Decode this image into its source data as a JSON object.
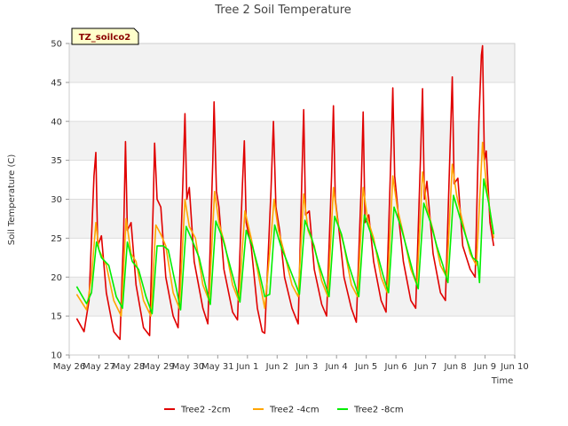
{
  "chart_data": {
    "type": "line",
    "title": "Tree 2 Soil Temperature",
    "xlabel": "Time",
    "ylabel": "Soil Temperature (C)",
    "ylim": [
      10,
      50
    ],
    "xlim": [
      "2024-05-26",
      "2024-06-10"
    ],
    "yticks": [
      "10",
      "15",
      "20",
      "25",
      "30",
      "35",
      "40",
      "45",
      "50"
    ],
    "xtick_labels": [
      "May 26",
      "May 27",
      "May 28",
      "May 29",
      "May 30",
      "May 31",
      "Jun 1",
      "Jun 2",
      "Jun 3",
      "Jun 4",
      "Jun 5",
      "Jun 6",
      "Jun 7",
      "Jun 8",
      "Jun 9",
      "Jun 10"
    ],
    "grid": true,
    "legend_position": "bottom",
    "annotation": "TZ_soilco2",
    "series": [
      {
        "name": "Tree2 -2cm",
        "color": "#e00000",
        "points": [
          [
            "2024-05-26 06:00",
            14.7
          ],
          [
            "2024-05-26 12:00",
            13.0
          ],
          [
            "2024-05-26 16:00",
            17.0
          ],
          [
            "2024-05-26 20:00",
            33.0
          ],
          [
            "2024-05-26 21:30",
            36.0
          ],
          [
            "2024-05-26 23:00",
            24.0
          ],
          [
            "2024-05-27 02:00",
            25.3
          ],
          [
            "2024-05-27 06:00",
            18.0
          ],
          [
            "2024-05-27 12:00",
            13.0
          ],
          [
            "2024-05-27 17:00",
            12.0
          ],
          [
            "2024-05-27 20:00",
            26.0
          ],
          [
            "2024-05-27 21:30",
            37.4
          ],
          [
            "2024-05-27 23:00",
            26.0
          ],
          [
            "2024-05-28 02:00",
            27.0
          ],
          [
            "2024-05-28 06:00",
            19.0
          ],
          [
            "2024-05-28 12:00",
            13.5
          ],
          [
            "2024-05-28 17:00",
            12.5
          ],
          [
            "2024-05-28 20:00",
            30.0
          ],
          [
            "2024-05-28 21:00",
            37.2
          ],
          [
            "2024-05-28 23:00",
            30.0
          ],
          [
            "2024-05-29 02:00",
            29.0
          ],
          [
            "2024-05-29 06:00",
            20.0
          ],
          [
            "2024-05-29 12:00",
            15.0
          ],
          [
            "2024-05-29 16:00",
            13.5
          ],
          [
            "2024-05-29 20:00",
            33.0
          ],
          [
            "2024-05-29 21:30",
            41.0
          ],
          [
            "2024-05-29 23:00",
            30.0
          ],
          [
            "2024-05-30 01:00",
            31.5
          ],
          [
            "2024-05-30 05:00",
            22.0
          ],
          [
            "2024-05-30 12:00",
            16.0
          ],
          [
            "2024-05-30 16:00",
            14.0
          ],
          [
            "2024-05-30 20:00",
            35.0
          ],
          [
            "2024-05-30 21:00",
            42.5
          ],
          [
            "2024-05-30 23:00",
            31.0
          ],
          [
            "2024-05-31 01:00",
            29.0
          ],
          [
            "2024-05-31 05:00",
            21.0
          ],
          [
            "2024-05-31 12:00",
            15.5
          ],
          [
            "2024-05-31 16:00",
            14.5
          ],
          [
            "2024-05-31 20:00",
            32.0
          ],
          [
            "2024-05-31 21:30",
            37.5
          ],
          [
            "2024-05-31 23:00",
            27.0
          ],
          [
            "2024-06-01 03:00",
            24.0
          ],
          [
            "2024-06-01 08:00",
            16.0
          ],
          [
            "2024-06-01 12:00",
            13.0
          ],
          [
            "2024-06-01 14:00",
            12.8
          ],
          [
            "2024-06-01 19:00",
            31.0
          ],
          [
            "2024-06-01 21:00",
            40.0
          ],
          [
            "2024-06-01 23:00",
            29.0
          ],
          [
            "2024-06-02 02:00",
            26.0
          ],
          [
            "2024-06-02 06:00",
            20.0
          ],
          [
            "2024-06-02 12:00",
            16.0
          ],
          [
            "2024-06-02 17:00",
            14.0
          ],
          [
            "2024-06-02 20:00",
            33.0
          ],
          [
            "2024-06-02 21:30",
            41.5
          ],
          [
            "2024-06-02 23:00",
            28.0
          ],
          [
            "2024-06-03 02:00",
            28.5
          ],
          [
            "2024-06-03 06:00",
            21.0
          ],
          [
            "2024-06-03 12:00",
            16.5
          ],
          [
            "2024-06-03 16:00",
            15.0
          ],
          [
            "2024-06-03 20:00",
            33.0
          ],
          [
            "2024-06-03 21:30",
            42.0
          ],
          [
            "2024-06-03 23:00",
            30.0
          ],
          [
            "2024-06-04 02:00",
            26.0
          ],
          [
            "2024-06-04 06:00",
            20.0
          ],
          [
            "2024-06-04 12:00",
            16.0
          ],
          [
            "2024-06-04 16:00",
            14.2
          ],
          [
            "2024-06-04 20:00",
            32.0
          ],
          [
            "2024-06-04 21:30",
            41.2
          ],
          [
            "2024-06-04 23:00",
            27.0
          ],
          [
            "2024-06-05 02:00",
            28.0
          ],
          [
            "2024-06-05 06:00",
            22.0
          ],
          [
            "2024-06-05 12:00",
            17.0
          ],
          [
            "2024-06-05 16:00",
            15.5
          ],
          [
            "2024-06-05 20:00",
            36.0
          ],
          [
            "2024-06-05 21:30",
            44.3
          ],
          [
            "2024-06-05 23:00",
            33.0
          ],
          [
            "2024-06-06 02:00",
            28.0
          ],
          [
            "2024-06-06 06:00",
            22.0
          ],
          [
            "2024-06-06 12:00",
            17.0
          ],
          [
            "2024-06-06 16:00",
            16.0
          ],
          [
            "2024-06-06 20:00",
            36.0
          ],
          [
            "2024-06-06 21:30",
            44.2
          ],
          [
            "2024-06-06 23:00",
            30.0
          ],
          [
            "2024-06-07 01:00",
            32.3
          ],
          [
            "2024-06-07 06:00",
            23.0
          ],
          [
            "2024-06-07 12:00",
            18.0
          ],
          [
            "2024-06-07 16:00",
            17.0
          ],
          [
            "2024-06-07 20:00",
            38.0
          ],
          [
            "2024-06-07 21:30",
            45.7
          ],
          [
            "2024-06-07 23:00",
            32.0
          ],
          [
            "2024-06-08 02:00",
            32.7
          ],
          [
            "2024-06-08 06:00",
            24.0
          ],
          [
            "2024-06-08 12:00",
            21.0
          ],
          [
            "2024-06-08 16:00",
            20.0
          ],
          [
            "2024-06-08 19:00",
            40.0
          ],
          [
            "2024-06-08 21:00",
            48.5
          ],
          [
            "2024-06-08 22:00",
            49.7
          ],
          [
            "2024-06-08 23:30",
            35.0
          ],
          [
            "2024-06-09 01:00",
            36.2
          ],
          [
            "2024-06-09 04:00",
            27.0
          ],
          [
            "2024-06-09 07:00",
            24.0
          ]
        ]
      },
      {
        "name": "Tree2 -4cm",
        "color": "#ffa500",
        "points": [
          [
            "2024-05-26 06:00",
            17.8
          ],
          [
            "2024-05-26 14:00",
            15.8
          ],
          [
            "2024-05-26 18:00",
            20.0
          ],
          [
            "2024-05-26 21:30",
            27.0
          ],
          [
            "2024-05-27 00:00",
            23.5
          ],
          [
            "2024-05-27 06:00",
            21.5
          ],
          [
            "2024-05-27 12:00",
            17.0
          ],
          [
            "2024-05-27 18:00",
            15.0
          ],
          [
            "2024-05-27 22:00",
            27.5
          ],
          [
            "2024-05-28 02:00",
            23.0
          ],
          [
            "2024-05-28 06:00",
            22.0
          ],
          [
            "2024-05-28 12:00",
            17.0
          ],
          [
            "2024-05-28 18:00",
            15.0
          ],
          [
            "2024-05-28 22:00",
            26.7
          ],
          [
            "2024-05-29 02:00",
            25.5
          ],
          [
            "2024-05-29 06:00",
            24.0
          ],
          [
            "2024-05-29 12:00",
            18.0
          ],
          [
            "2024-05-29 17:00",
            16.0
          ],
          [
            "2024-05-29 21:30",
            30.0
          ],
          [
            "2024-05-30 01:00",
            26.5
          ],
          [
            "2024-05-30 06:00",
            25.0
          ],
          [
            "2024-05-30 12:00",
            19.0
          ],
          [
            "2024-05-30 17:00",
            17.0
          ],
          [
            "2024-05-30 21:30",
            31.0
          ],
          [
            "2024-05-31 01:00",
            27.0
          ],
          [
            "2024-05-31 06:00",
            24.0
          ],
          [
            "2024-05-31 12:00",
            19.0
          ],
          [
            "2024-05-31 17:00",
            17.0
          ],
          [
            "2024-05-31 22:00",
            28.5
          ],
          [
            "2024-06-01 03:00",
            25.0
          ],
          [
            "2024-06-01 08:00",
            21.0
          ],
          [
            "2024-06-01 14:00",
            16.0
          ],
          [
            "2024-06-01 19:00",
            25.0
          ],
          [
            "2024-06-01 21:30",
            30.0
          ],
          [
            "2024-06-02 01:00",
            26.0
          ],
          [
            "2024-06-02 06:00",
            23.0
          ],
          [
            "2024-06-02 12:00",
            19.0
          ],
          [
            "2024-06-02 17:00",
            17.5
          ],
          [
            "2024-06-02 21:30",
            30.7
          ],
          [
            "2024-06-03 01:00",
            26.0
          ],
          [
            "2024-06-03 06:00",
            24.0
          ],
          [
            "2024-06-03 12:00",
            19.5
          ],
          [
            "2024-06-03 17:00",
            17.5
          ],
          [
            "2024-06-03 21:30",
            31.5
          ],
          [
            "2024-06-04 01:00",
            27.0
          ],
          [
            "2024-06-04 06:00",
            24.0
          ],
          [
            "2024-06-04 12:00",
            19.0
          ],
          [
            "2024-06-04 17:00",
            17.5
          ],
          [
            "2024-06-04 21:30",
            31.5
          ],
          [
            "2024-06-05 01:00",
            27.5
          ],
          [
            "2024-06-05 06:00",
            25.0
          ],
          [
            "2024-06-05 12:00",
            20.0
          ],
          [
            "2024-06-05 17:00",
            18.0
          ],
          [
            "2024-06-05 21:30",
            33.0
          ],
          [
            "2024-06-06 01:00",
            29.0
          ],
          [
            "2024-06-06 06:00",
            25.5
          ],
          [
            "2024-06-06 12:00",
            21.0
          ],
          [
            "2024-06-06 17:00",
            19.0
          ],
          [
            "2024-06-06 21:30",
            33.5
          ],
          [
            "2024-06-07 01:00",
            29.0
          ],
          [
            "2024-06-07 06:00",
            26.0
          ],
          [
            "2024-06-07 12:00",
            21.5
          ],
          [
            "2024-06-07 17:00",
            20.0
          ],
          [
            "2024-06-07 21:30",
            34.5
          ],
          [
            "2024-06-08 01:00",
            30.5
          ],
          [
            "2024-06-08 06:00",
            27.0
          ],
          [
            "2024-06-08 12:00",
            23.0
          ],
          [
            "2024-06-08 17:00",
            21.5
          ],
          [
            "2024-06-08 22:00",
            37.3
          ],
          [
            "2024-06-09 01:00",
            32.0
          ],
          [
            "2024-06-09 07:00",
            25.0
          ]
        ]
      },
      {
        "name": "Tree2 -8cm",
        "color": "#00ee00",
        "points": [
          [
            "2024-05-26 06:00",
            18.8
          ],
          [
            "2024-05-26 14:00",
            16.6
          ],
          [
            "2024-05-26 18:00",
            18.0
          ],
          [
            "2024-05-26 22:00",
            24.5
          ],
          [
            "2024-05-27 02:00",
            22.5
          ],
          [
            "2024-05-27 08:00",
            21.5
          ],
          [
            "2024-05-27 14:00",
            17.5
          ],
          [
            "2024-05-27 19:00",
            16.0
          ],
          [
            "2024-05-27 23:00",
            24.5
          ],
          [
            "2024-05-28 03:00",
            22.0
          ],
          [
            "2024-05-28 08:00",
            21.0
          ],
          [
            "2024-05-28 14:00",
            17.5
          ],
          [
            "2024-05-28 19:00",
            15.3
          ],
          [
            "2024-05-28 23:00",
            24.0
          ],
          [
            "2024-05-29 04:00",
            24.0
          ],
          [
            "2024-05-29 08:00",
            23.5
          ],
          [
            "2024-05-29 14:00",
            19.0
          ],
          [
            "2024-05-29 18:00",
            15.8
          ],
          [
            "2024-05-29 22:30",
            26.5
          ],
          [
            "2024-05-30 04:00",
            24.5
          ],
          [
            "2024-05-30 09:00",
            22.5
          ],
          [
            "2024-05-30 14:00",
            19.0
          ],
          [
            "2024-05-30 18:00",
            16.5
          ],
          [
            "2024-05-30 22:30",
            27.2
          ],
          [
            "2024-05-31 04:00",
            25.0
          ],
          [
            "2024-05-31 09:00",
            22.0
          ],
          [
            "2024-05-31 14:00",
            19.0
          ],
          [
            "2024-05-31 18:00",
            16.8
          ],
          [
            "2024-05-31 23:00",
            26.0
          ],
          [
            "2024-06-01 04:00",
            24.0
          ],
          [
            "2024-06-01 09:00",
            21.0
          ],
          [
            "2024-06-01 14:00",
            17.5
          ],
          [
            "2024-06-01 18:00",
            17.8
          ],
          [
            "2024-06-01 22:00",
            26.7
          ],
          [
            "2024-06-02 03:00",
            24.0
          ],
          [
            "2024-06-02 08:00",
            22.0
          ],
          [
            "2024-06-02 14:00",
            19.5
          ],
          [
            "2024-06-02 18:00",
            17.8
          ],
          [
            "2024-06-02 22:30",
            27.3
          ],
          [
            "2024-06-03 04:00",
            25.0
          ],
          [
            "2024-06-03 09:00",
            22.0
          ],
          [
            "2024-06-03 14:00",
            19.5
          ],
          [
            "2024-06-03 18:00",
            17.5
          ],
          [
            "2024-06-03 22:30",
            27.8
          ],
          [
            "2024-06-04 04:00",
            25.5
          ],
          [
            "2024-06-04 09:00",
            22.0
          ],
          [
            "2024-06-04 14:00",
            19.5
          ],
          [
            "2024-06-04 18:00",
            17.5
          ],
          [
            "2024-06-04 22:30",
            28.0
          ],
          [
            "2024-06-05 04:00",
            25.5
          ],
          [
            "2024-06-05 09:00",
            23.0
          ],
          [
            "2024-06-05 14:00",
            20.0
          ],
          [
            "2024-06-05 18:00",
            18.0
          ],
          [
            "2024-06-05 22:30",
            29.0
          ],
          [
            "2024-06-06 04:00",
            26.5
          ],
          [
            "2024-06-06 09:00",
            23.5
          ],
          [
            "2024-06-06 14:00",
            20.5
          ],
          [
            "2024-06-06 18:00",
            18.5
          ],
          [
            "2024-06-06 22:30",
            29.5
          ],
          [
            "2024-06-07 04:00",
            27.0
          ],
          [
            "2024-06-07 09:00",
            24.0
          ],
          [
            "2024-06-07 14:00",
            21.5
          ],
          [
            "2024-06-07 18:00",
            19.3
          ],
          [
            "2024-06-07 22:30",
            30.5
          ],
          [
            "2024-06-08 04:00",
            27.5
          ],
          [
            "2024-06-08 09:00",
            25.0
          ],
          [
            "2024-06-08 14:00",
            22.5
          ],
          [
            "2024-06-08 18:00",
            22.0
          ],
          [
            "2024-06-08 19:30",
            19.3
          ],
          [
            "2024-06-08 23:00",
            32.6
          ],
          [
            "2024-06-09 03:00",
            29.5
          ],
          [
            "2024-06-09 07:00",
            25.5
          ]
        ]
      }
    ]
  }
}
